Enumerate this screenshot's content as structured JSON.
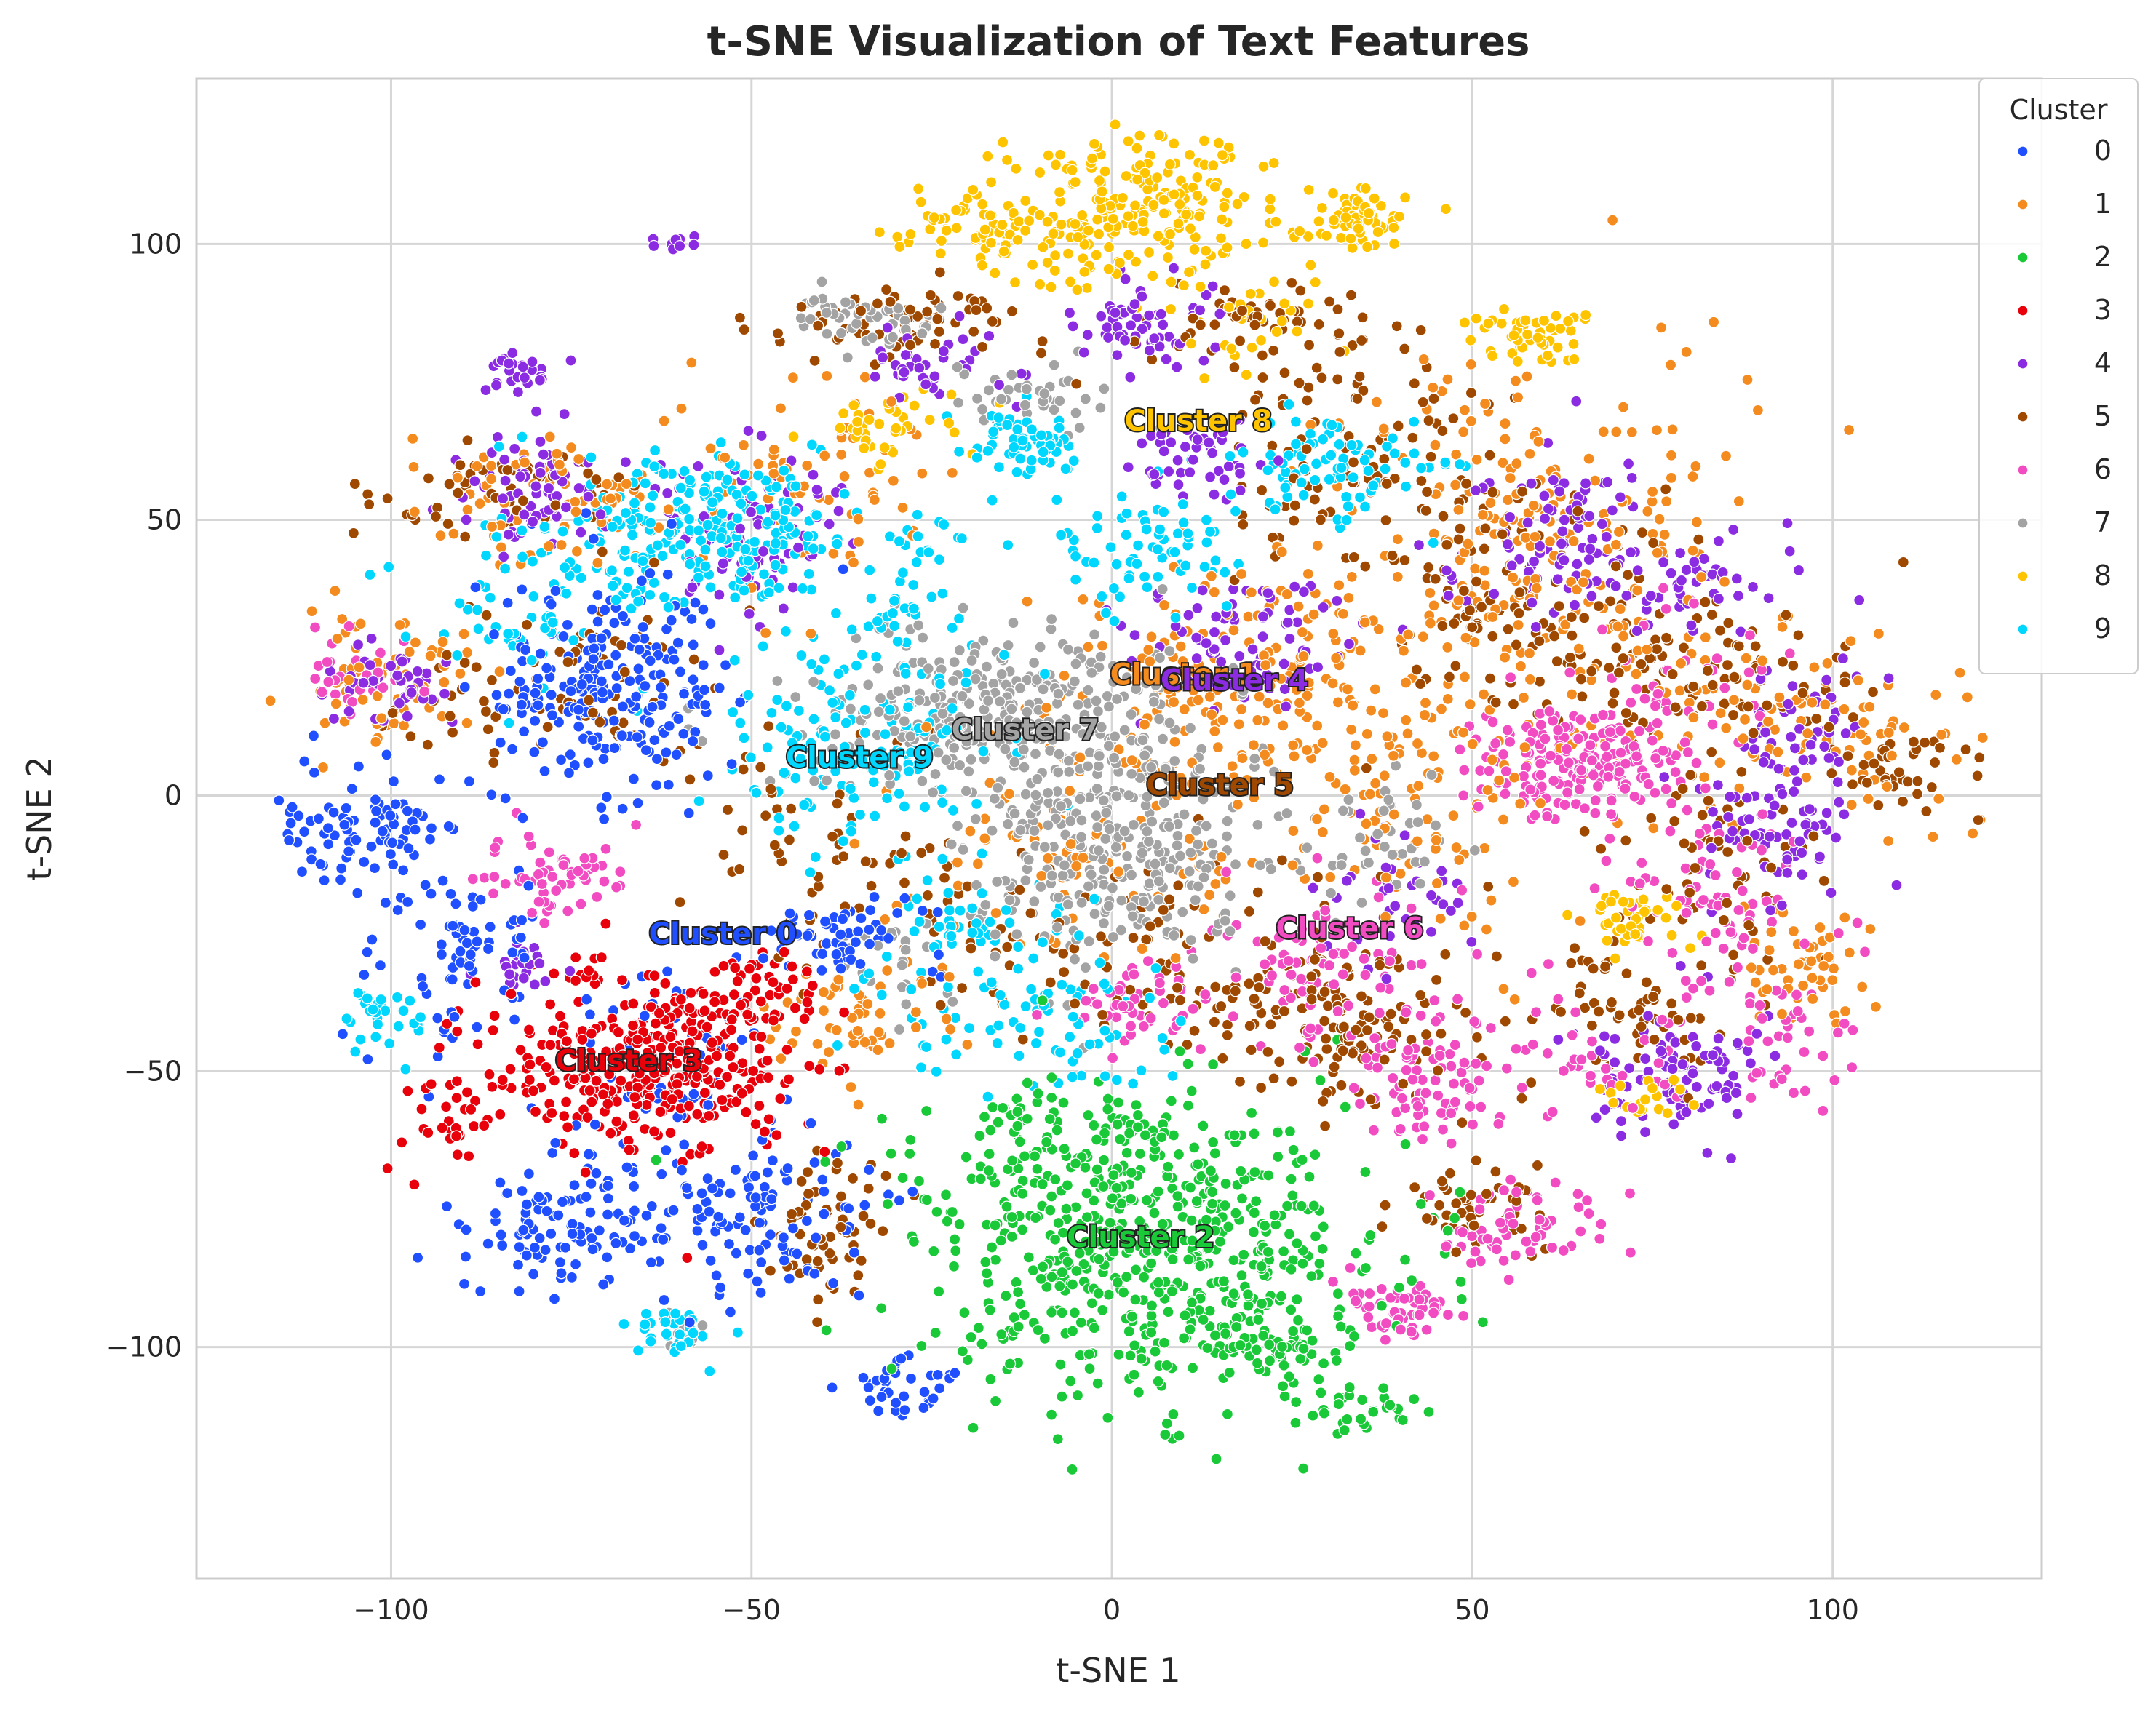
{
  "chart_data": {
    "type": "scatter",
    "title": "t-SNE Visualization of Text Features",
    "xlabel": "t-SNE 1",
    "ylabel": "t-SNE 2",
    "xlim": [
      -127,
      129
    ],
    "ylim": [
      -142,
      130
    ],
    "xticks": [
      -100,
      -50,
      0,
      50,
      100
    ],
    "yticks": [
      100,
      50,
      0,
      -50,
      -100
    ],
    "xtick_labels": [
      "−100",
      "−50",
      "0",
      "50",
      "100"
    ],
    "ytick_labels": [
      "100",
      "50",
      "0",
      "−50",
      "−100"
    ],
    "grid": true,
    "legend": {
      "title": "Cluster",
      "placement": "top-right"
    },
    "series": [
      {
        "name": "0",
        "color": "#1f4fff",
        "label": "Cluster 0",
        "centroid": [
          -54,
          -25
        ],
        "blobs": [
          [
            -72,
            20,
            9,
            10,
            240
          ],
          [
            -104,
            -7,
            6,
            6,
            90
          ],
          [
            -77,
            -78,
            7,
            6,
            110
          ],
          [
            -50,
            -76,
            8,
            7,
            110
          ],
          [
            -38,
            -27,
            6,
            4,
            60
          ],
          [
            -28,
            -107,
            4,
            3,
            35
          ],
          [
            -90,
            -30,
            6,
            8,
            70
          ],
          [
            -60,
            -50,
            8,
            10,
            60
          ]
        ]
      },
      {
        "name": "1",
        "color": "#f38b1f",
        "label": "Cluster 1",
        "centroid": [
          10,
          22
        ],
        "blobs": [
          [
            -102,
            22,
            6,
            7,
            70
          ],
          [
            -78,
            55,
            8,
            6,
            70
          ],
          [
            20,
            20,
            14,
            12,
            200
          ],
          [
            60,
            45,
            15,
            20,
            260
          ],
          [
            100,
            12,
            10,
            8,
            90
          ],
          [
            94,
            -30,
            5,
            5,
            50
          ],
          [
            -35,
            -40,
            6,
            6,
            60
          ],
          [
            -5,
            -10,
            12,
            10,
            80
          ],
          [
            40,
            0,
            15,
            12,
            100
          ],
          [
            -40,
            55,
            10,
            10,
            70
          ]
        ]
      },
      {
        "name": "2",
        "color": "#1ac938",
        "label": "Cluster 2",
        "centroid": [
          4,
          -80
        ],
        "blobs": [
          [
            5,
            -82,
            16,
            14,
            580
          ],
          [
            24,
            -100,
            4,
            3,
            40
          ],
          [
            35,
            -111,
            4,
            2,
            30
          ],
          [
            -5,
            -65,
            12,
            6,
            80
          ]
        ]
      },
      {
        "name": "3",
        "color": "#e8000b",
        "label": "Cluster 3",
        "centroid": [
          -67,
          -48
        ],
        "blobs": [
          [
            -65,
            -48,
            10,
            8,
            380
          ],
          [
            -92,
            -60,
            3,
            3,
            25
          ],
          [
            -47,
            -35,
            4,
            3,
            30
          ]
        ]
      },
      {
        "name": "4",
        "color": "#8b2be2",
        "label": "Cluster 4",
        "centroid": [
          17,
          21
        ],
        "blobs": [
          [
            -82,
            77,
            3,
            2,
            25
          ],
          [
            -80,
            55,
            6,
            5,
            70
          ],
          [
            -50,
            48,
            7,
            7,
            90
          ],
          [
            5,
            85,
            5,
            4,
            60
          ],
          [
            12,
            62,
            5,
            4,
            50
          ],
          [
            17,
            28,
            8,
            6,
            80
          ],
          [
            62,
            45,
            8,
            7,
            100
          ],
          [
            96,
            12,
            4,
            5,
            50
          ],
          [
            92,
            -5,
            5,
            6,
            70
          ],
          [
            78,
            -50,
            6,
            6,
            90
          ],
          [
            -60,
            100,
            2,
            1,
            10
          ],
          [
            -26,
            78,
            5,
            4,
            40
          ],
          [
            -100,
            20,
            4,
            4,
            40
          ],
          [
            -82,
            -30,
            3,
            3,
            25
          ],
          [
            40,
            -20,
            6,
            6,
            40
          ],
          [
            80,
            38,
            6,
            4,
            40
          ]
        ]
      },
      {
        "name": "5",
        "color": "#9f4800",
        "label": "Cluster 5",
        "centroid": [
          15,
          2
        ],
        "blobs": [
          [
            -30,
            85,
            10,
            4,
            70
          ],
          [
            22,
            85,
            8,
            4,
            60
          ],
          [
            35,
            60,
            10,
            10,
            100
          ],
          [
            55,
            35,
            10,
            10,
            120
          ],
          [
            85,
            20,
            10,
            8,
            90
          ],
          [
            110,
            5,
            6,
            4,
            40
          ],
          [
            30,
            -40,
            10,
            8,
            150
          ],
          [
            -40,
            -78,
            4,
            6,
            60
          ],
          [
            72,
            -40,
            6,
            6,
            60
          ],
          [
            50,
            -75,
            6,
            4,
            50
          ],
          [
            -75,
            20,
            10,
            8,
            80
          ],
          [
            0,
            -25,
            15,
            10,
            100
          ],
          [
            85,
            -10,
            8,
            10,
            60
          ],
          [
            -85,
            55,
            10,
            5,
            60
          ],
          [
            -40,
            -10,
            10,
            10,
            50
          ]
        ]
      },
      {
        "name": "6",
        "color": "#f14cc1",
        "label": "Cluster 6",
        "centroid": [
          33,
          -24
        ],
        "blobs": [
          [
            62,
            5,
            6,
            6,
            140
          ],
          [
            72,
            5,
            4,
            4,
            50
          ],
          [
            45,
            -52,
            5,
            6,
            80
          ],
          [
            30,
            -30,
            8,
            8,
            80
          ],
          [
            40,
            -92,
            4,
            3,
            50
          ],
          [
            55,
            -78,
            6,
            4,
            60
          ],
          [
            5,
            -38,
            5,
            4,
            50
          ],
          [
            -78,
            -15,
            5,
            4,
            60
          ],
          [
            85,
            -20,
            8,
            8,
            70
          ],
          [
            95,
            -45,
            6,
            6,
            40
          ],
          [
            80,
            20,
            6,
            8,
            40
          ],
          [
            -104,
            22,
            4,
            4,
            30
          ],
          [
            65,
            -45,
            8,
            6,
            40
          ]
        ]
      },
      {
        "name": "7",
        "color": "#a3a3a3",
        "label": "Cluster 7",
        "centroid": [
          -12,
          12
        ],
        "blobs": [
          [
            -15,
            15,
            14,
            8,
            360
          ],
          [
            0,
            -10,
            10,
            10,
            300
          ],
          [
            -35,
            87,
            6,
            3,
            50
          ],
          [
            -10,
            72,
            6,
            3,
            40
          ],
          [
            35,
            -8,
            5,
            5,
            40
          ],
          [
            -28,
            -28,
            5,
            5,
            30
          ],
          [
            -60,
            -97,
            2,
            2,
            10
          ]
        ]
      },
      {
        "name": "8",
        "color": "#ffc400",
        "label": "Cluster 8",
        "centroid": [
          12,
          68
        ],
        "blobs": [
          [
            5,
            107,
            10,
            7,
            200
          ],
          [
            -15,
            103,
            8,
            4,
            80
          ],
          [
            34,
            104,
            4,
            3,
            60
          ],
          [
            58,
            84,
            4,
            3,
            50
          ],
          [
            -32,
            66,
            5,
            3,
            40
          ],
          [
            72,
            -22,
            4,
            3,
            40
          ],
          [
            75,
            -55,
            3,
            2,
            20
          ],
          [
            15,
            85,
            8,
            6,
            30
          ]
        ]
      },
      {
        "name": "9",
        "color": "#00d7ff",
        "label": "Cluster 9",
        "centroid": [
          -35,
          7
        ],
        "blobs": [
          [
            -58,
            48,
            10,
            7,
            220
          ],
          [
            -35,
            10,
            10,
            10,
            140
          ],
          [
            -12,
            64,
            4,
            3,
            60
          ],
          [
            -60,
            -97,
            3,
            2,
            30
          ],
          [
            -100,
            -40,
            3,
            3,
            30
          ],
          [
            5,
            45,
            8,
            6,
            70
          ],
          [
            30,
            60,
            8,
            6,
            80
          ],
          [
            -20,
            -30,
            8,
            10,
            80
          ],
          [
            -80,
            35,
            8,
            8,
            60
          ],
          [
            -5,
            -45,
            6,
            6,
            40
          ],
          [
            -30,
            40,
            8,
            8,
            50
          ]
        ]
      }
    ]
  }
}
